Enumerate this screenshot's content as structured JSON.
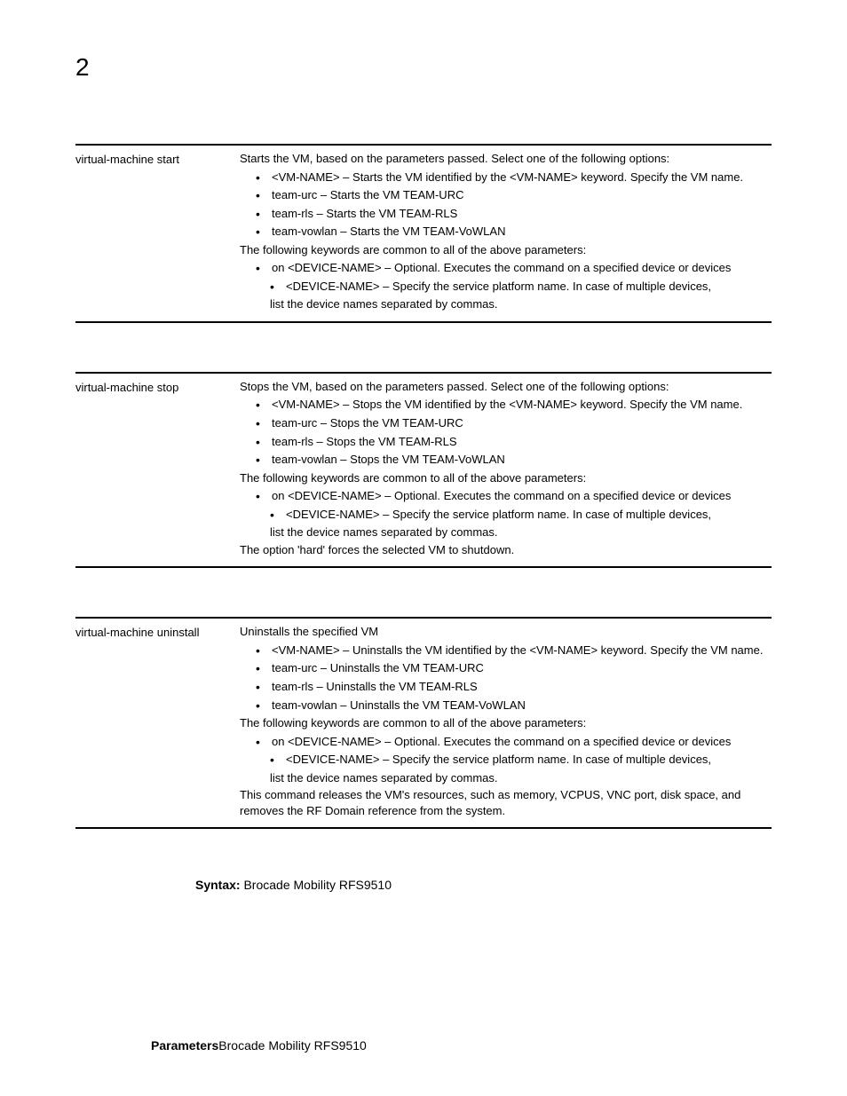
{
  "pageNumber": "2",
  "sections": [
    {
      "command": "virtual-machine start",
      "intro": "Starts the VM, based on the parameters passed. Select one of the following options:",
      "bullets": [
        "<VM-NAME> – Starts the VM identified by the <VM-NAME> keyword. Specify the VM name.",
        "team-urc – Starts the VM TEAM-URC",
        "team-rls – Starts the VM TEAM-RLS",
        "team-vowlan – Starts the VM TEAM-VoWLAN"
      ],
      "commonText": "The following keywords are common to all of the above parameters:",
      "commonBullet": "on <DEVICE-NAME> – Optional. Executes the command on a specified device or devices",
      "subBullet": "<DEVICE-NAME> – Specify the service platform name. In case of multiple devices,",
      "deviceContinue": "list the device names separated by commas.",
      "footer": ""
    },
    {
      "command": "virtual-machine stop",
      "intro": "Stops the VM, based on the parameters passed. Select one of the following options:",
      "bullets": [
        "<VM-NAME> – Stops the VM identified by the <VM-NAME> keyword. Specify the VM name.",
        "team-urc – Stops the VM TEAM-URC",
        "team-rls – Stops the VM TEAM-RLS",
        "team-vowlan – Stops the VM TEAM-VoWLAN"
      ],
      "commonText": "The following keywords are common to all of the above parameters:",
      "commonBullet": "on <DEVICE-NAME> – Optional. Executes the command on a specified device or devices",
      "subBullet": "<DEVICE-NAME> – Specify the service platform name. In case of multiple devices,",
      "deviceContinue": "list the device names separated by commas.",
      "footer": "The option 'hard' forces the selected VM to shutdown."
    },
    {
      "command": "virtual-machine uninstall",
      "intro": "Uninstalls the specified VM",
      "bullets": [
        "<VM-NAME> – Uninstalls the VM identified by the <VM-NAME> keyword. Specify the VM name.",
        "team-urc – Uninstalls the VM TEAM-URC",
        "team-rls – Uninstalls the VM TEAM-RLS",
        "team-vowlan – Uninstalls the VM TEAM-VoWLAN"
      ],
      "commonText": "The following keywords are common to all of the above parameters:",
      "commonBullet": "on <DEVICE-NAME> – Optional. Executes the command on a specified device or devices",
      "subBullet": "<DEVICE-NAME> – Specify the service platform name. In case of multiple devices,",
      "deviceContinue": "list the device names separated by commas.",
      "footer": "This command releases the VM's resources, such as memory, VCPUS, VNC port, disk space, and removes the RF Domain reference from the system."
    }
  ],
  "syntaxLabel": "Syntax:",
  "syntaxValue": "Brocade Mobility RFS9510",
  "parametersLabel": "Parameters",
  "parametersValue": "Brocade Mobility RFS9510"
}
